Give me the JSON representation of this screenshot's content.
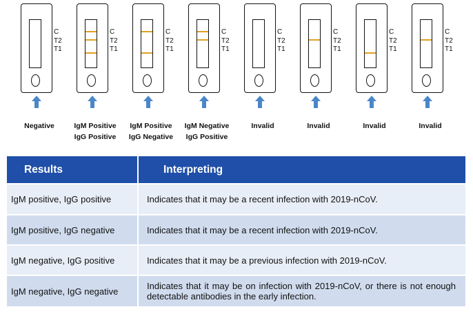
{
  "marker_labels": [
    "C",
    "T2",
    "T1"
  ],
  "line_color": "#e0a020",
  "arrow_color": "#4a86c8",
  "header_color": "#1f4fa8",
  "row_colors": [
    "#e8eef7",
    "#d0dcee"
  ],
  "cassettes": [
    {
      "lines": [],
      "caption": [
        "Negative"
      ]
    },
    {
      "lines": [
        "C",
        "T2",
        "T1"
      ],
      "caption": [
        "IgM Positive",
        "IgG Positive"
      ]
    },
    {
      "lines": [
        "C",
        "T1"
      ],
      "caption": [
        "IgM Positive",
        "IgG Negative"
      ]
    },
    {
      "lines": [
        "C",
        "T2"
      ],
      "caption": [
        "IgM Negative",
        "IgG Positive"
      ]
    },
    {
      "lines": [],
      "caption": [
        "Invalid"
      ]
    },
    {
      "lines": [
        "T2"
      ],
      "caption": [
        "Invalid"
      ]
    },
    {
      "lines": [
        "T1"
      ],
      "caption": [
        "Invalid"
      ]
    },
    {
      "lines": [
        "T2"
      ],
      "caption": [
        "Invalid"
      ]
    }
  ],
  "table": {
    "headers": [
      "Results",
      "Interpreting"
    ],
    "rows": [
      {
        "result": "IgM positive, IgG positive",
        "interpretation": "Indicates that it may be a recent infection with 2019-nCoV."
      },
      {
        "result": "IgM positive, IgG negative",
        "interpretation": "Indicates that it may be a recent infection with 2019-nCoV."
      },
      {
        "result": "IgM negative, IgG positive",
        "interpretation": "Indicates that it may be a previous infection with 2019-nCoV."
      },
      {
        "result": "IgM negative, IgG negative",
        "interpretation": "Indicates that it may be on infection with 2019-nCoV, or there is not enough detectable antibodies in the early infection."
      }
    ]
  }
}
